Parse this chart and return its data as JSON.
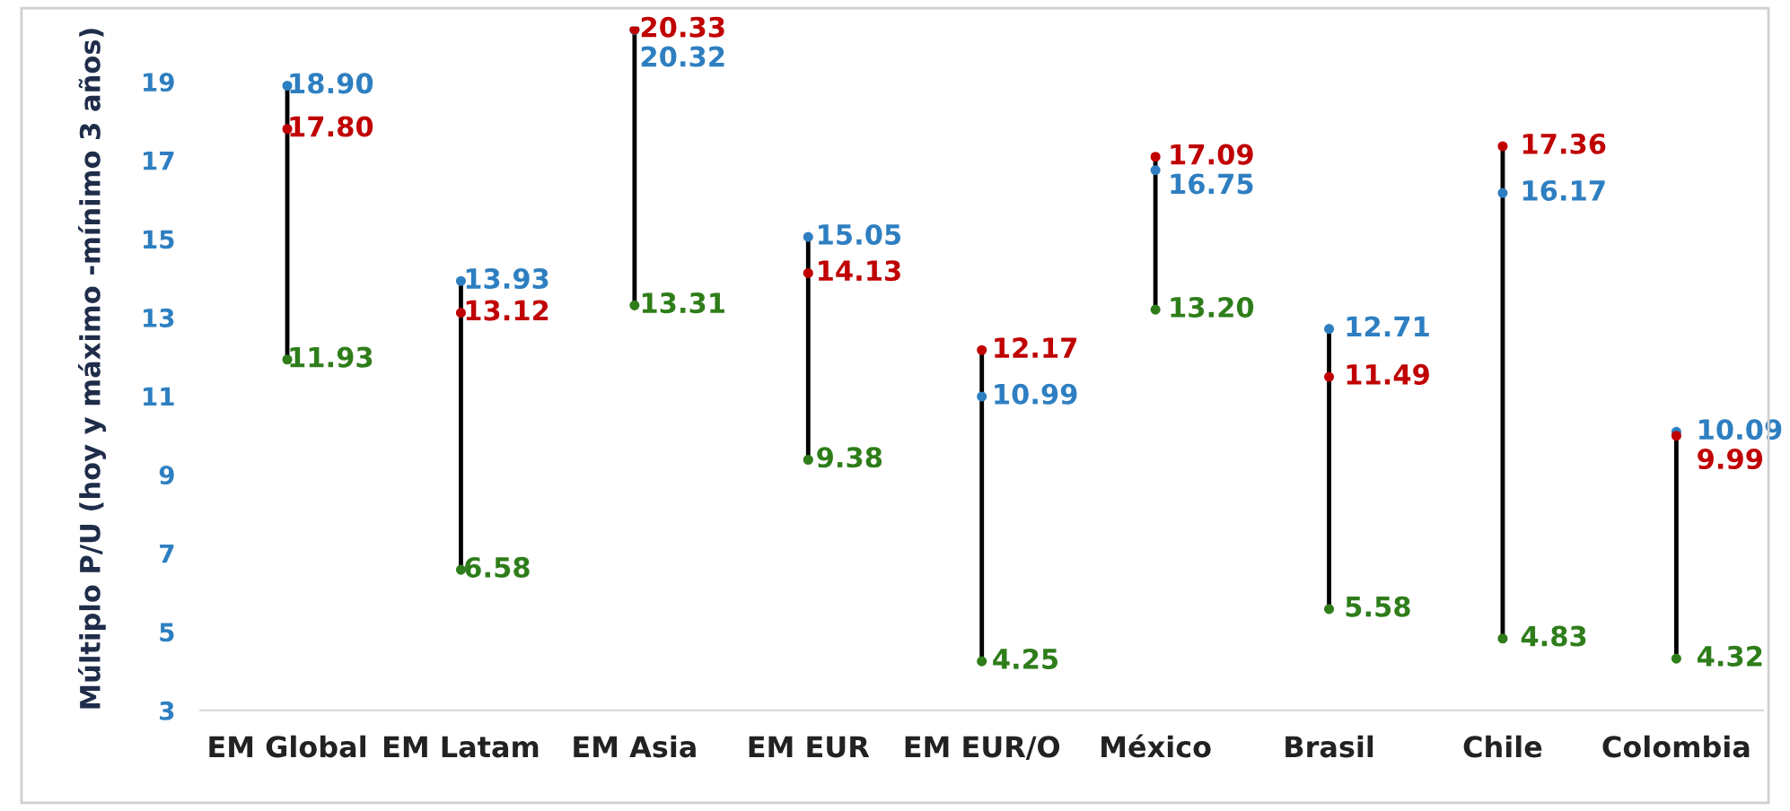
{
  "chart_data": {
    "type": "bar",
    "ylabel": "Múltiplo P/U (hoy y máximo -mínimo 3 años)",
    "categories": [
      "EM Global",
      "EM Latam",
      "EM Asia",
      "EM EUR",
      "EM EUR/O",
      "México",
      "Brasil",
      "Chile",
      "Colombia"
    ],
    "ylim": [
      3,
      20.4
    ],
    "yticks": [
      3,
      5,
      7,
      9,
      11,
      13,
      15,
      17,
      19
    ],
    "grid": false,
    "marker": "circle",
    "series": [
      {
        "color": "#000000",
        "base": [
          11.93,
          6.58,
          13.31,
          9.38,
          4.25,
          13.2,
          5.58,
          4.83,
          4.32
        ],
        "values": [
          6.97,
          7.35,
          7.02,
          5.67,
          7.92,
          3.89,
          7.13,
          12.53,
          5.77
        ]
      },
      {
        "type": "scatter",
        "color": "#2e7fc1",
        "values": [
          18.9,
          13.93,
          20.32,
          15.05,
          10.99,
          16.75,
          12.71,
          16.17,
          10.09
        ],
        "value_labels": [
          "18.90",
          "13.93",
          "20.32",
          "15.05",
          "10.99",
          "16.75",
          "12.71",
          "16.17",
          "10.09"
        ]
      },
      {
        "type": "scatter",
        "color": "#c00000",
        "values": [
          17.8,
          13.12,
          20.33,
          14.13,
          12.17,
          17.09,
          11.49,
          17.36,
          9.99
        ],
        "value_labels": [
          "17.80",
          "13.12",
          "20.33",
          "14.13",
          "12.17",
          "17.09",
          "11.49",
          "17.36",
          "9.99"
        ]
      },
      {
        "type": "scatter",
        "color": "#2e7d1a",
        "values": [
          11.93,
          6.58,
          13.31,
          9.38,
          4.25,
          13.2,
          5.58,
          4.83,
          4.32
        ],
        "value_labels": [
          "11.93",
          "6.58",
          "13.31",
          "9.38",
          "4.25",
          "13.20",
          "5.58",
          "4.83",
          "4.32"
        ]
      }
    ]
  }
}
